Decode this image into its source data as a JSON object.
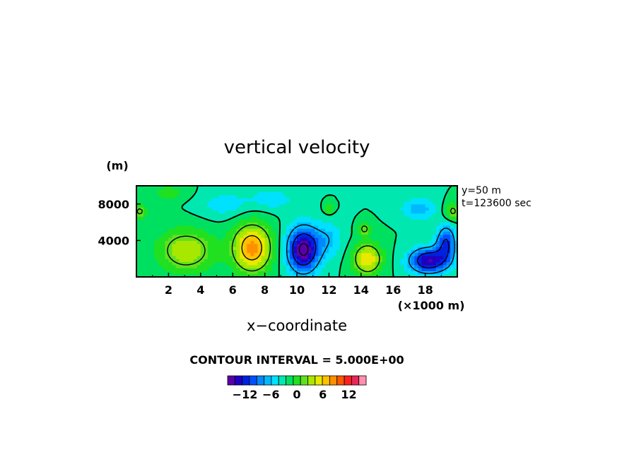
{
  "chart_data": {
    "type": "heatmap",
    "title": "vertical velocity",
    "xlabel": "x−coordinate",
    "x_unit": "(×1000 m)",
    "y_unit": "(m)",
    "x_ticks": [
      2,
      4,
      6,
      8,
      10,
      12,
      14,
      16,
      18
    ],
    "x_tick_labels": [
      "2",
      "4",
      "6",
      "8",
      "10",
      "12",
      "14",
      "16",
      "18"
    ],
    "y_ticks": [
      4000,
      8000
    ],
    "y_tick_labels": [
      "4000",
      "8000"
    ],
    "xlim": [
      0,
      20
    ],
    "ylim": [
      0,
      10000
    ],
    "annotations": [
      "y=50 m",
      "t=123600 sec"
    ],
    "contour_interval_text": "CONTOUR INTERVAL = 5.000E+00",
    "colorbar": {
      "min": -16,
      "max": 16,
      "step": 2,
      "tick_values": [
        -12,
        -6,
        0,
        6,
        12
      ],
      "tick_labels": [
        "−12",
        "−6",
        "0",
        "6",
        "12"
      ],
      "colors": [
        "#5a00a8",
        "#2000c0",
        "#0020e0",
        "#0050ff",
        "#0088ff",
        "#00b8ff",
        "#00e0ff",
        "#00e8b0",
        "#00e060",
        "#20e020",
        "#60e020",
        "#a8e800",
        "#e8e800",
        "#ffc000",
        "#ff9000",
        "#ff5800",
        "#ff2020",
        "#e82858",
        "#ff90b0"
      ]
    },
    "features": [
      {
        "kind": "updraft",
        "x": 3.1,
        "y": 2900,
        "peak": 8,
        "rx": 1.7,
        "ry": 2300
      },
      {
        "kind": "updraft",
        "x": 7.2,
        "y": 3200,
        "peak": 13,
        "rx": 1.2,
        "ry": 2600
      },
      {
        "kind": "downdraft",
        "x": 10.4,
        "y": 3000,
        "peak": -16,
        "rx": 1.0,
        "ry": 2500
      },
      {
        "kind": "downdraft",
        "x": 12.0,
        "y": 4200,
        "peak": -4,
        "rx": 0.9,
        "ry": 2000
      },
      {
        "kind": "updraft",
        "x": 14.4,
        "y": 2000,
        "peak": 10,
        "rx": 0.9,
        "ry": 1700
      },
      {
        "kind": "downdraft",
        "x": 18.2,
        "y": 1800,
        "peak": -14,
        "rx": 1.2,
        "ry": 1400
      },
      {
        "kind": "downdraft",
        "x": 19.3,
        "y": 3800,
        "peak": -10,
        "rx": 0.6,
        "ry": 1900
      },
      {
        "kind": "downdraft",
        "x": 17.6,
        "y": 7500,
        "peak": -5,
        "rx": 1.1,
        "ry": 1200
      },
      {
        "kind": "updraft",
        "x": 19.7,
        "y": 7200,
        "peak": 6,
        "rx": 0.5,
        "ry": 1000
      },
      {
        "kind": "updraft",
        "x": 14.2,
        "y": 5300,
        "peak": 6,
        "rx": 0.4,
        "ry": 700
      },
      {
        "kind": "updraft",
        "x": 12.0,
        "y": 7600,
        "peak": 5,
        "rx": 0.3,
        "ry": 600
      },
      {
        "kind": "downdraft",
        "x": 5.5,
        "y": 8000,
        "peak": -3,
        "rx": 1.6,
        "ry": 1500
      },
      {
        "kind": "downdraft",
        "x": 8.5,
        "y": 8600,
        "peak": -3,
        "rx": 1.5,
        "ry": 1300
      },
      {
        "kind": "updraft",
        "x": 2.0,
        "y": 9300,
        "peak": 3,
        "rx": 1.2,
        "ry": 900
      },
      {
        "kind": "updraft",
        "x": 0.2,
        "y": 7200,
        "peak": 6,
        "rx": 0.4,
        "ry": 700
      }
    ]
  }
}
